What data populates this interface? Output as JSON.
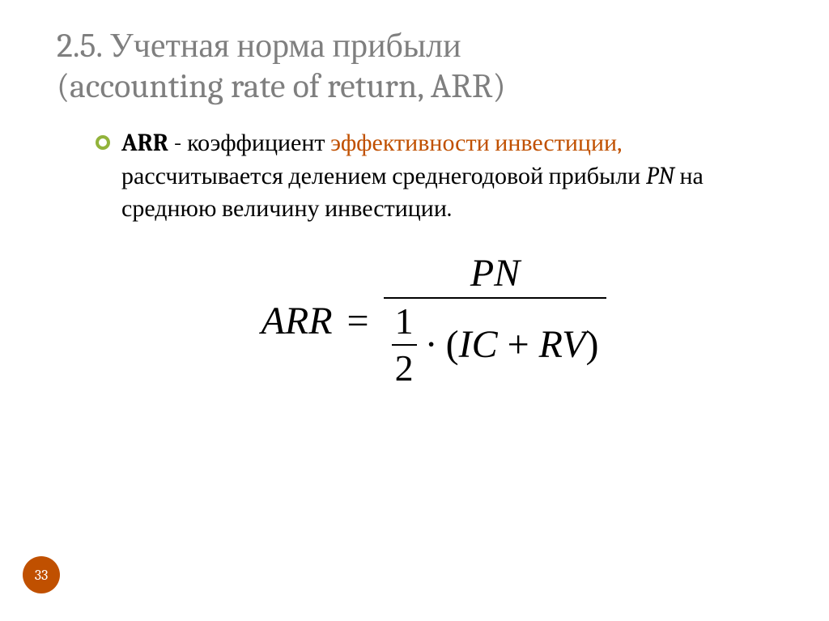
{
  "accent_color": "#92b33b",
  "highlight_color": "#c05000",
  "badge_color": "#c05000",
  "title_line1": "2.5. Учетная норма прибыли",
  "title_line2": "(accounting rate of return, ARR)",
  "para": {
    "lead_bold": "ARR",
    "dash": " - ",
    "pre_highlight": "коэффициент ",
    "highlight": "эффективности инвестиции,",
    "post1": " рассчитывается делением среднегодовой прибыли ",
    "pn": "PN",
    "post2": " на среднюю величину инвестиции."
  },
  "formula": {
    "lhs": "ARR",
    "eq": "=",
    "numerator": "PN",
    "half_num": "1",
    "half_den": "2",
    "dot": "·",
    "paren_open": "(",
    "var1": "IC",
    "plus": " + ",
    "var2": "RV",
    "paren_close": ")"
  },
  "page_number": "33"
}
